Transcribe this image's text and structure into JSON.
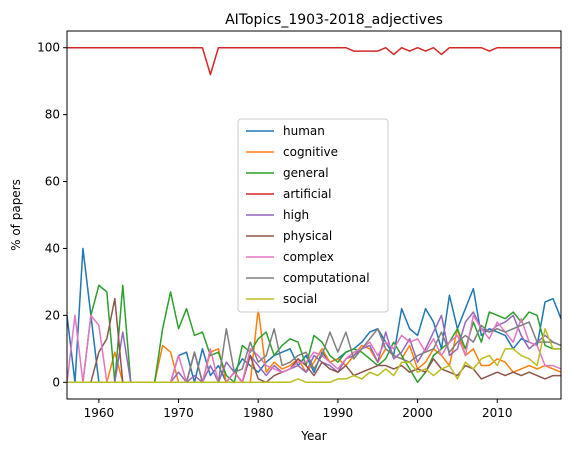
{
  "chart_data": {
    "type": "line",
    "title": "AITopics_1903-2018_adjectives",
    "xlabel": "Year",
    "ylabel": "% of papers",
    "xlim": [
      1956,
      2018
    ],
    "ylim": [
      -5,
      105
    ],
    "xticks": [
      1960,
      1970,
      1980,
      1990,
      2000,
      2010
    ],
    "yticks": [
      0,
      20,
      40,
      60,
      80,
      100
    ],
    "grid": false,
    "legend_position": "center",
    "x": [
      1956,
      1957,
      1958,
      1959,
      1960,
      1961,
      1962,
      1963,
      1964,
      1965,
      1966,
      1967,
      1968,
      1969,
      1970,
      1971,
      1972,
      1973,
      1974,
      1975,
      1976,
      1977,
      1978,
      1979,
      1980,
      1981,
      1982,
      1983,
      1984,
      1985,
      1986,
      1987,
      1988,
      1989,
      1990,
      1991,
      1992,
      1993,
      1994,
      1995,
      1996,
      1997,
      1998,
      1999,
      2000,
      2001,
      2002,
      2003,
      2004,
      2005,
      2006,
      2007,
      2008,
      2009,
      2010,
      2011,
      2012,
      2013,
      2014,
      2015,
      2016,
      2017,
      2018
    ],
    "series": [
      {
        "name": "human",
        "color": "#1f77b4",
        "values": [
          20,
          0,
          40,
          20,
          0,
          0,
          0,
          0,
          0,
          0,
          0,
          0,
          0,
          0,
          8,
          9,
          0,
          10,
          2,
          5,
          0,
          3,
          7,
          5,
          3,
          6,
          8,
          9,
          10,
          5,
          8,
          3,
          9,
          6,
          7,
          9,
          10,
          12,
          15,
          16,
          12,
          8,
          22,
          16,
          14,
          22,
          18,
          10,
          26,
          16,
          22,
          28,
          14,
          16,
          15,
          14,
          10,
          13,
          12,
          11,
          24,
          25,
          19
        ]
      },
      {
        "name": "cognitive",
        "color": "#ff7f0e",
        "values": [
          0,
          0,
          0,
          0,
          0,
          0,
          9,
          0,
          0,
          0,
          0,
          0,
          11,
          9,
          0,
          0,
          0,
          0,
          9,
          10,
          0,
          0,
          0,
          0,
          22,
          3,
          6,
          4,
          5,
          7,
          3,
          6,
          10,
          6,
          7,
          5,
          8,
          11,
          10,
          6,
          10,
          8,
          7,
          11,
          4,
          6,
          10,
          8,
          5,
          16,
          8,
          10,
          5,
          5,
          7,
          6,
          3,
          4,
          5,
          4,
          5,
          4,
          3
        ]
      },
      {
        "name": "general",
        "color": "#2ca02c",
        "values": [
          0,
          0,
          0,
          20,
          29,
          27,
          0,
          29,
          0,
          0,
          0,
          0,
          16,
          27,
          16,
          22,
          14,
          15,
          8,
          9,
          2,
          0,
          11,
          9,
          13,
          15,
          8,
          11,
          13,
          12,
          5,
          14,
          12,
          8,
          6,
          9,
          10,
          9,
          7,
          5,
          7,
          12,
          8,
          4,
          0,
          3,
          8,
          10,
          12,
          16,
          10,
          18,
          12,
          21,
          20,
          19,
          21,
          18,
          21,
          20,
          11,
          10,
          10
        ]
      },
      {
        "name": "artificial",
        "color": "#d62728",
        "values": [
          100,
          100,
          100,
          100,
          100,
          100,
          100,
          100,
          100,
          100,
          100,
          100,
          100,
          100,
          100,
          100,
          100,
          100,
          92,
          100,
          100,
          100,
          100,
          100,
          100,
          100,
          100,
          100,
          100,
          100,
          100,
          100,
          100,
          100,
          100,
          100,
          99,
          99,
          99,
          99,
          100,
          98,
          100,
          99,
          100,
          99,
          100,
          98,
          100,
          100,
          100,
          100,
          100,
          99,
          100,
          100,
          100,
          100,
          100,
          100,
          100,
          100,
          100
        ]
      },
      {
        "name": "high",
        "color": "#9467bd",
        "values": [
          0,
          0,
          0,
          0,
          0,
          0,
          0,
          15,
          0,
          0,
          0,
          0,
          0,
          0,
          3,
          0,
          2,
          0,
          5,
          0,
          6,
          3,
          0,
          8,
          5,
          2,
          5,
          3,
          4,
          5,
          3,
          8,
          6,
          5,
          3,
          7,
          8,
          10,
          11,
          6,
          15,
          7,
          9,
          13,
          6,
          10,
          15,
          20,
          8,
          10,
          18,
          21,
          16,
          15,
          17,
          18,
          20,
          14,
          10,
          12,
          14,
          12,
          11
        ]
      },
      {
        "name": "physical",
        "color": "#8c564b",
        "values": [
          0,
          0,
          0,
          0,
          9,
          13,
          25,
          0,
          0,
          0,
          0,
          0,
          0,
          0,
          0,
          0,
          9,
          0,
          0,
          0,
          0,
          3,
          0,
          8,
          1,
          0,
          2,
          3,
          4,
          7,
          5,
          2,
          6,
          4,
          3,
          5,
          2,
          3,
          4,
          5,
          5,
          4,
          5,
          3,
          4,
          3,
          7,
          4,
          3,
          2,
          5,
          4,
          1,
          2,
          3,
          2,
          3,
          2,
          3,
          2,
          1,
          2,
          2
        ]
      },
      {
        "name": "complex",
        "color": "#e377c2",
        "values": [
          0,
          20,
          0,
          20,
          17,
          0,
          0,
          0,
          0,
          0,
          0,
          0,
          0,
          0,
          8,
          0,
          9,
          0,
          10,
          0,
          0,
          3,
          0,
          10,
          8,
          5,
          4,
          3,
          4,
          6,
          6,
          9,
          8,
          6,
          4,
          7,
          9,
          10,
          12,
          8,
          12,
          10,
          14,
          12,
          13,
          9,
          13,
          8,
          12,
          14,
          8,
          20,
          16,
          13,
          18,
          15,
          12,
          19,
          12,
          11,
          5,
          5,
          4
        ]
      },
      {
        "name": "computational",
        "color": "#7f7f7f",
        "values": [
          0,
          0,
          0,
          0,
          0,
          0,
          0,
          0,
          0,
          0,
          0,
          0,
          0,
          0,
          0,
          0,
          9,
          0,
          0,
          0,
          16,
          3,
          4,
          12,
          6,
          8,
          16,
          5,
          6,
          8,
          9,
          4,
          8,
          15,
          9,
          15,
          7,
          10,
          13,
          16,
          10,
          8,
          7,
          6,
          8,
          9,
          10,
          15,
          9,
          12,
          14,
          12,
          17,
          15,
          16,
          15,
          16,
          17,
          18,
          12,
          12,
          12,
          11
        ]
      },
      {
        "name": "social",
        "color": "#bcbd22",
        "values": [
          0,
          0,
          0,
          0,
          0,
          0,
          0,
          0,
          0,
          0,
          0,
          0,
          0,
          0,
          0,
          0,
          0,
          0,
          0,
          0,
          0,
          0,
          0,
          0,
          0,
          0,
          0,
          0,
          0,
          1,
          0,
          0,
          0,
          0,
          1,
          1,
          2,
          1,
          3,
          2,
          4,
          2,
          6,
          6,
          3,
          4,
          2,
          4,
          5,
          1,
          6,
          4,
          7,
          8,
          5,
          10,
          10,
          8,
          7,
          5,
          16,
          10,
          10
        ]
      }
    ]
  }
}
